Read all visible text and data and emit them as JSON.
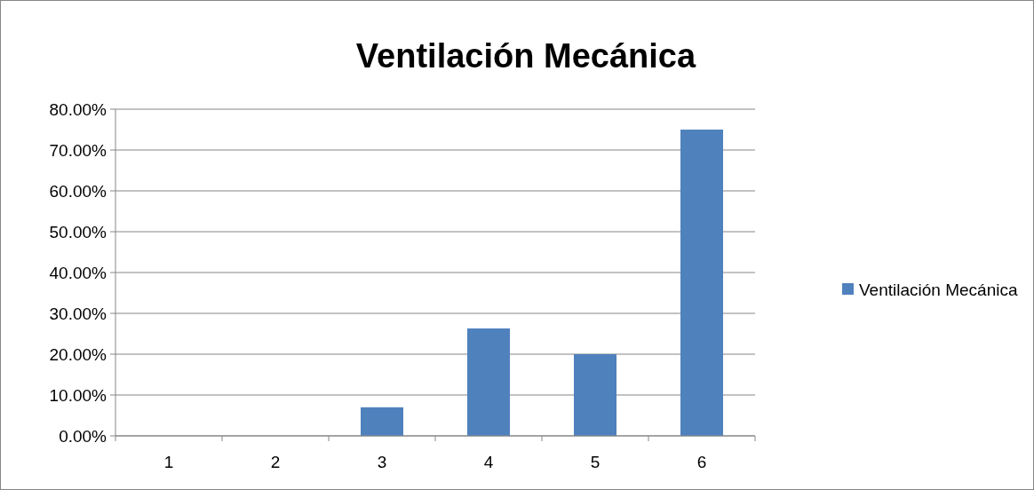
{
  "chart_data": {
    "type": "bar",
    "title": "Ventilación Mecánica",
    "categories": [
      "1",
      "2",
      "3",
      "4",
      "5",
      "6"
    ],
    "series": [
      {
        "name": "Ventilación Mecánica",
        "color": "#4f81bd",
        "values": [
          0,
          0,
          7,
          26.3,
          20,
          75
        ]
      }
    ],
    "ylim": [
      0,
      80
    ],
    "yticks": [
      {
        "value": 0,
        "label": "0.00%"
      },
      {
        "value": 10,
        "label": "10.00%"
      },
      {
        "value": 20,
        "label": "20.00%"
      },
      {
        "value": 30,
        "label": "30.00%"
      },
      {
        "value": 40,
        "label": "40.00%"
      },
      {
        "value": 50,
        "label": "50.00%"
      },
      {
        "value": 60,
        "label": "60.00%"
      },
      {
        "value": 70,
        "label": "70.00%"
      },
      {
        "value": 80,
        "label": "80.00%"
      }
    ],
    "grid": "y",
    "legend": "right"
  }
}
